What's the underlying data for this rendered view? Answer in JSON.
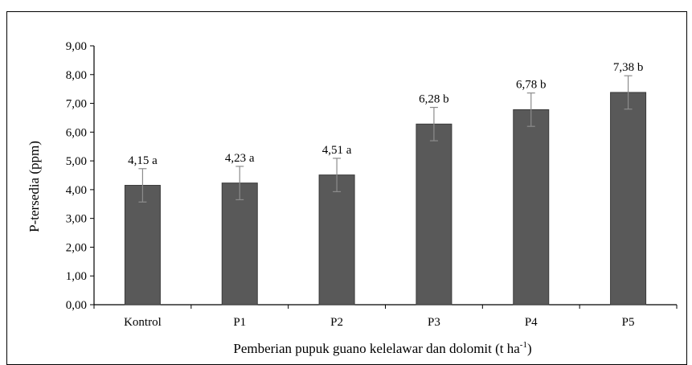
{
  "chart_data": {
    "type": "bar",
    "categories": [
      "Kontrol",
      "P1",
      "P2",
      "P3",
      "P4",
      "P5"
    ],
    "values": [
      4.15,
      4.23,
      4.51,
      6.28,
      6.78,
      7.38
    ],
    "error": [
      0.58,
      0.58,
      0.58,
      0.58,
      0.58,
      0.58
    ],
    "data_labels": [
      "4,15 a",
      "4,23 a",
      "4,51 a",
      "6,28 b",
      "6,78 b",
      "7,38 b"
    ],
    "ylim": [
      0,
      9
    ],
    "yticks": [
      0,
      1,
      2,
      3,
      4,
      5,
      6,
      7,
      8,
      9
    ],
    "ytick_labels": [
      "0,00",
      "1,00",
      "2,00",
      "3,00",
      "4,00",
      "5,00",
      "6,00",
      "7,00",
      "8,00",
      "9,00"
    ],
    "ylabel": "P-tersedia (ppm)",
    "xlabel": "Pemberian pupuk guano kelelawar dan dolomit (t ha",
    "xlabel_sup": "-1",
    "xlabel_end": ")",
    "grid": false,
    "bar_color": "#595959"
  }
}
